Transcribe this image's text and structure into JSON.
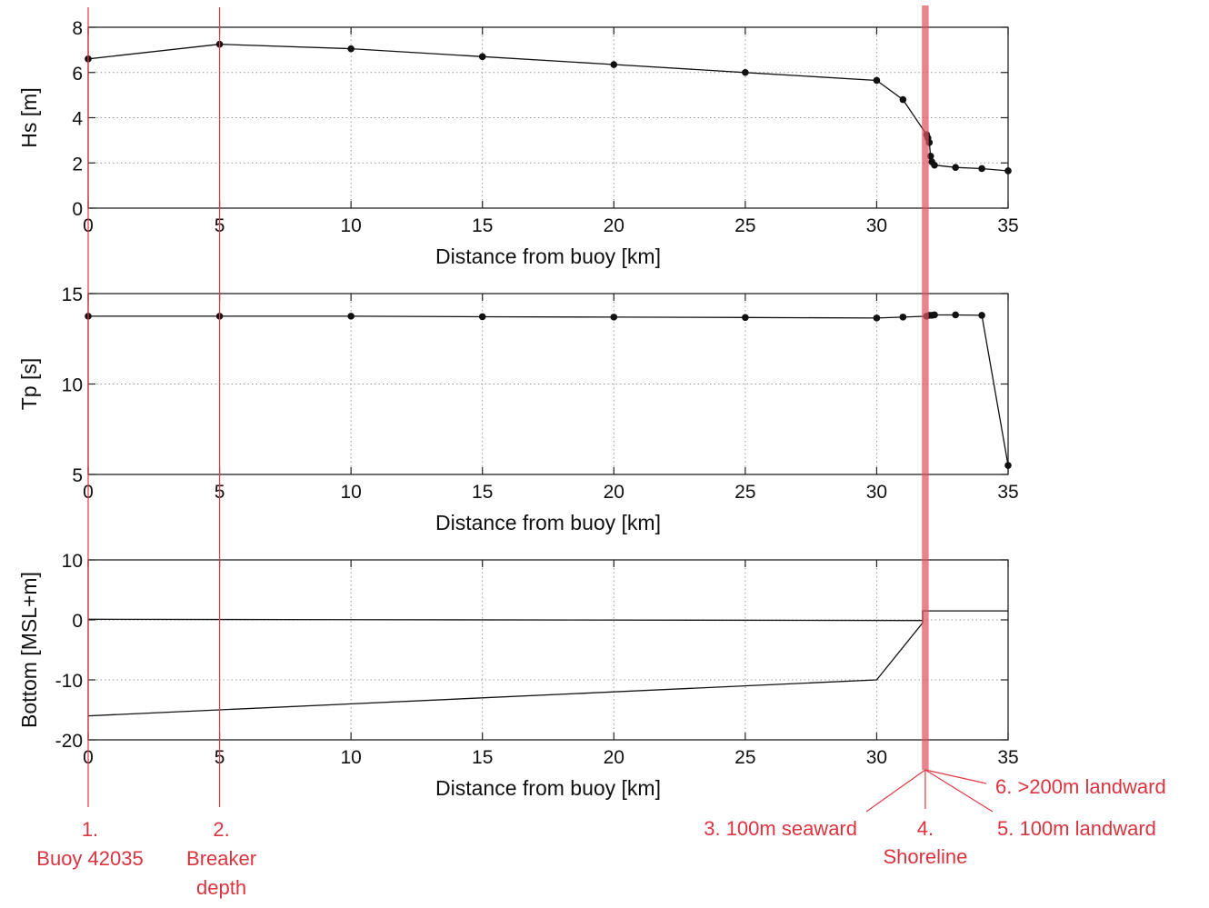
{
  "chart_data": [
    {
      "type": "line",
      "ylabel": "Hs [m]",
      "xlabel": "Distance from buoy [km]",
      "xlim": [
        0,
        35
      ],
      "ylim": [
        0,
        8
      ],
      "xticks": [
        0,
        5,
        10,
        15,
        20,
        25,
        30,
        35
      ],
      "yticks": [
        0,
        2,
        4,
        6,
        8
      ],
      "grid": true,
      "series": [
        {
          "markers": true,
          "x": [
            0,
            5,
            10,
            15,
            20,
            25,
            30,
            31,
            31.9,
            31.95,
            32.0,
            32.05,
            32.1,
            32.2,
            33,
            34,
            35
          ],
          "y": [
            6.6,
            7.25,
            7.05,
            6.7,
            6.35,
            6.0,
            5.65,
            4.8,
            3.25,
            3.1,
            2.9,
            2.3,
            2.05,
            1.9,
            1.8,
            1.75,
            1.65
          ]
        }
      ]
    },
    {
      "type": "line",
      "ylabel": "Tp [s]",
      "xlabel": "Distance from buoy [km]",
      "xlim": [
        0,
        35
      ],
      "ylim": [
        5,
        15
      ],
      "xticks": [
        0,
        5,
        10,
        15,
        20,
        25,
        30,
        35
      ],
      "yticks": [
        5,
        10,
        15
      ],
      "grid": true,
      "series": [
        {
          "markers": true,
          "x": [
            0,
            5,
            10,
            15,
            20,
            25,
            30,
            31,
            31.9,
            32.0,
            32.1,
            32.2,
            33,
            34,
            35
          ],
          "y": [
            13.75,
            13.75,
            13.75,
            13.72,
            13.7,
            13.68,
            13.65,
            13.7,
            13.75,
            13.8,
            13.8,
            13.82,
            13.82,
            13.8,
            5.5
          ]
        }
      ]
    },
    {
      "type": "line",
      "ylabel": "Bottom [MSL+m]",
      "xlabel": "Distance from buoy [km]",
      "xlim": [
        0,
        35
      ],
      "ylim": [
        -20,
        10
      ],
      "xticks": [
        0,
        5,
        10,
        15,
        20,
        25,
        30,
        35
      ],
      "yticks": [
        -20,
        -10,
        0,
        10
      ],
      "grid": true,
      "series": [
        {
          "color": "#111111",
          "markers": false,
          "x": [
            0,
            30,
            31.75,
            31.75,
            35
          ],
          "y": [
            -16,
            -10,
            -0.5,
            1.5,
            1.5
          ]
        },
        {
          "color": "#1f9ad6",
          "markers": false,
          "x": [
            0,
            31.75
          ],
          "y": [
            0.1,
            -0.1
          ]
        }
      ]
    }
  ],
  "annotations": {
    "marker_lines": [
      {
        "x": 0,
        "lines": [
          "1.",
          "Buoy 42035"
        ]
      },
      {
        "x": 5,
        "lines": [
          "2.",
          "Breaker",
          "depth"
        ]
      }
    ],
    "shoreline_band": {
      "x_start": 31.72,
      "x_end": 31.98,
      "color": "#e05560"
    },
    "labels": [
      {
        "key": "seaward",
        "text": "3. 100m seaward"
      },
      {
        "key": "shoreline_num",
        "text": "4."
      },
      {
        "key": "shoreline",
        "text": "Shoreline"
      },
      {
        "key": "landward100",
        "text": "5. 100m landward"
      },
      {
        "key": "landward200",
        "text": "6. >200m landward"
      }
    ]
  }
}
